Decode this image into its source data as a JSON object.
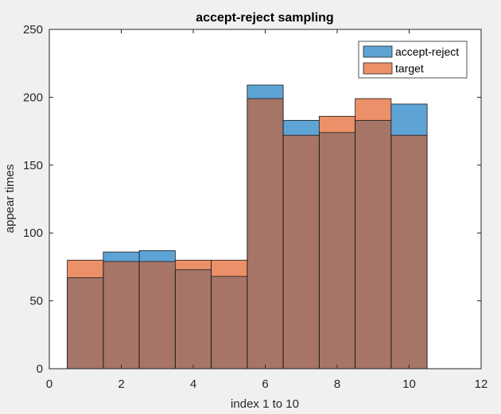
{
  "chart_data": {
    "type": "bar",
    "title": "accept-reject sampling",
    "xlabel": "index 1 to 10",
    "ylabel": "appear times",
    "xlim": [
      0,
      12
    ],
    "ylim": [
      0,
      250
    ],
    "xticks": [
      0,
      2,
      4,
      6,
      8,
      10,
      12
    ],
    "yticks": [
      0,
      50,
      100,
      150,
      200,
      250
    ],
    "grid": false,
    "legend_position": "top-right",
    "bin_edges": [
      0.5,
      1.5,
      2.5,
      3.5,
      4.5,
      5.5,
      6.5,
      7.5,
      8.5,
      9.5,
      10.5
    ],
    "categories": [
      1,
      2,
      3,
      4,
      5,
      6,
      7,
      8,
      9,
      10
    ],
    "series": [
      {
        "name": "accept-reject",
        "color": "#5ea3d6",
        "values": [
          67,
          86,
          87,
          73,
          68,
          209,
          183,
          174,
          183,
          195
        ]
      },
      {
        "name": "target",
        "color": "#eb9068",
        "values": [
          80,
          79,
          79,
          80,
          80,
          199,
          172,
          186,
          199,
          172
        ]
      }
    ],
    "overlap_color": "#a67567"
  }
}
